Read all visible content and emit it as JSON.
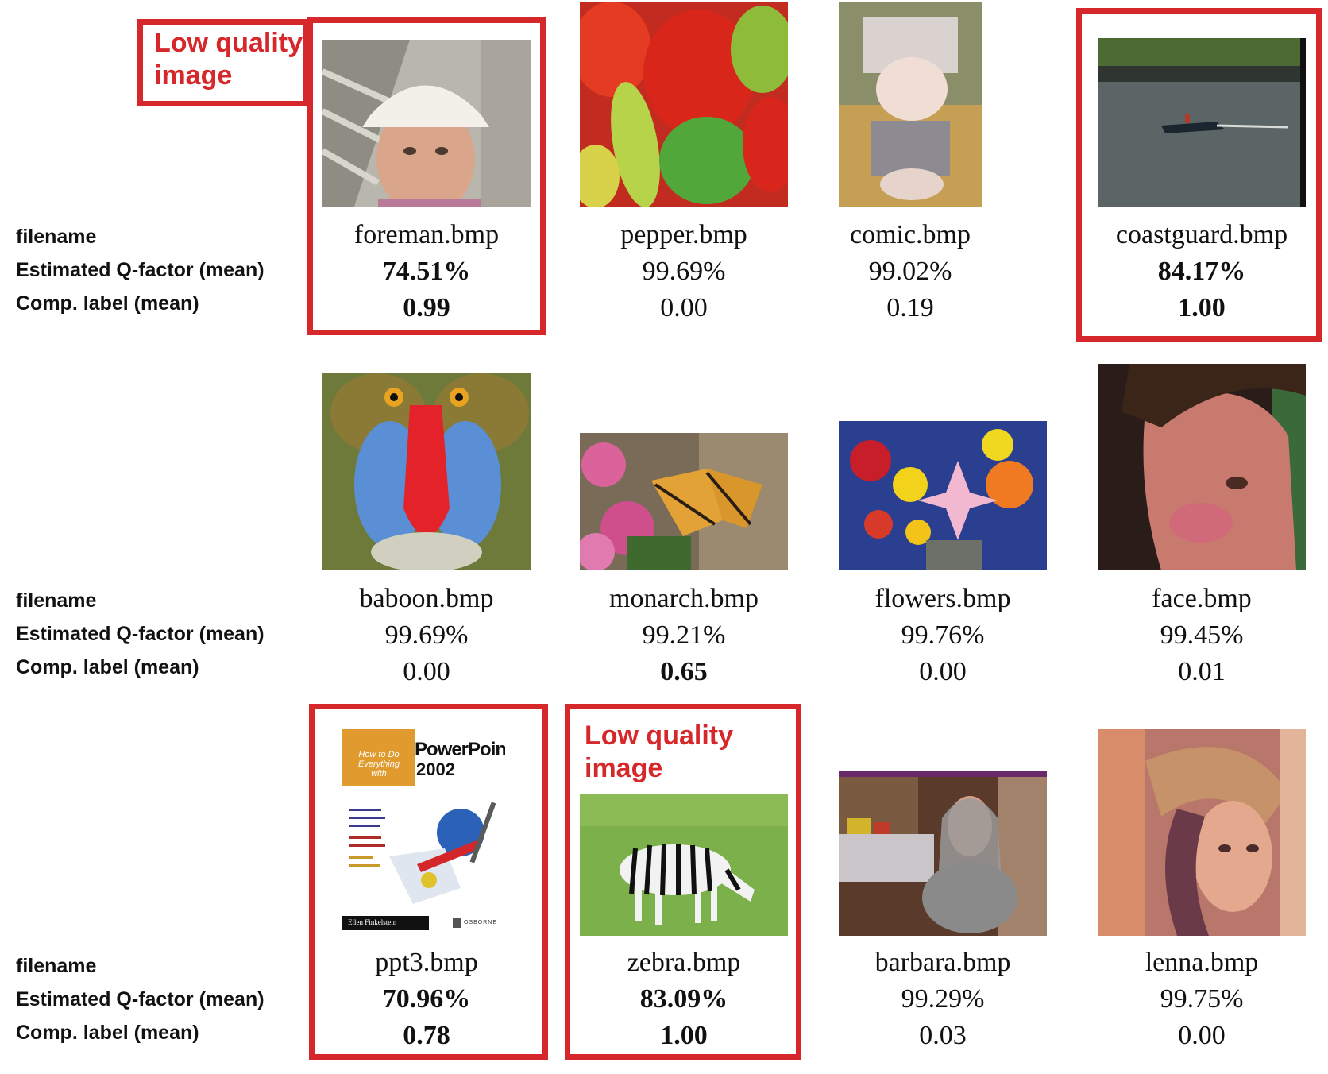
{
  "row_labels": {
    "filename": "filename",
    "qfactor": "Estimated Q-factor (mean)",
    "complabel": "Comp. label (mean)"
  },
  "annotation": {
    "low_quality_line1": "Low quality",
    "low_quality_line2": "image"
  },
  "accent_color": "#d6282b",
  "images": [
    {
      "filename": "foreman.bmp",
      "qfactor": "74.51%",
      "complabel": "0.99",
      "highlighted": true
    },
    {
      "filename": "pepper.bmp",
      "qfactor": "99.69%",
      "complabel": "0.00",
      "highlighted": false
    },
    {
      "filename": "comic.bmp",
      "qfactor": "99.02%",
      "complabel": "0.19",
      "highlighted": false
    },
    {
      "filename": "coastguard.bmp",
      "qfactor": "84.17%",
      "complabel": "1.00",
      "highlighted": true
    },
    {
      "filename": "baboon.bmp",
      "qfactor": "99.69%",
      "complabel": "0.00",
      "highlighted": false
    },
    {
      "filename": "monarch.bmp",
      "qfactor": "99.21%",
      "complabel": "0.65",
      "highlighted": false
    },
    {
      "filename": "flowers.bmp",
      "qfactor": "99.76%",
      "complabel": "0.00",
      "highlighted": false
    },
    {
      "filename": "face.bmp",
      "qfactor": "99.45%",
      "complabel": "0.01",
      "highlighted": false
    },
    {
      "filename": "ppt3.bmp",
      "qfactor": "70.96%",
      "complabel": "0.78",
      "highlighted": true
    },
    {
      "filename": "zebra.bmp",
      "qfactor": "83.09%",
      "complabel": "1.00",
      "highlighted": true
    },
    {
      "filename": "barbara.bmp",
      "qfactor": "99.29%",
      "complabel": "0.03",
      "highlighted": false
    },
    {
      "filename": "lenna.bmp",
      "qfactor": "99.75%",
      "complabel": "0.00",
      "highlighted": false
    }
  ],
  "ppt_cover": {
    "title_top": "PowerPoint",
    "title_year": "2002",
    "howto_line1": "How to Do",
    "howto_line2": "Everything",
    "howto_line3": "with",
    "author": "Ellen Finkelstein",
    "publisher": "OSBORNE"
  }
}
